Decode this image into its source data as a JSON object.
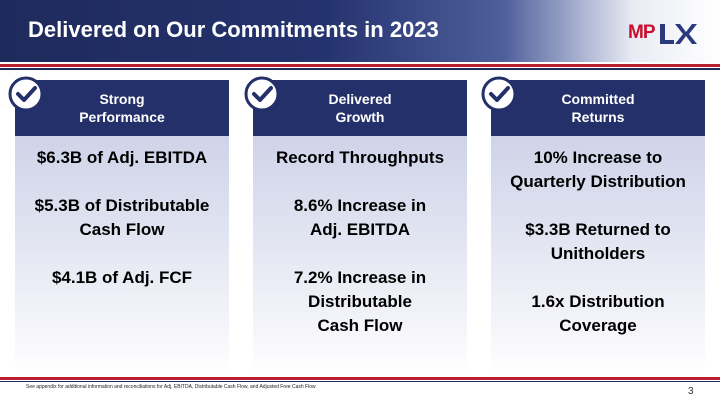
{
  "slide": {
    "title": "Delivered on Our Commitments in 2023",
    "logo_text": "MPLX",
    "logo_mp": "MP",
    "logo_lx": "LX",
    "colors": {
      "navy": "#24306a",
      "red": "#b8202f",
      "logo_red": "#c8102e"
    }
  },
  "panels": [
    {
      "heading": "Strong\nPerformance",
      "icon": "checkmark-circle-icon",
      "items": [
        "$6.3B of Adj. EBITDA",
        "$5.3B of Distributable\nCash Flow",
        "$4.1B of Adj. FCF"
      ]
    },
    {
      "heading": "Delivered\nGrowth",
      "icon": "checkmark-circle-icon",
      "items": [
        "Record Throughputs",
        "8.6% Increase in\nAdj. EBITDA",
        "7.2% Increase in\nDistributable\nCash Flow"
      ]
    },
    {
      "heading": "Committed\nReturns",
      "icon": "checkmark-circle-icon",
      "items": [
        "10% Increase to\nQuarterly Distribution",
        "$3.3B Returned to\nUnitholders",
        "1.6x Distribution\nCoverage"
      ]
    }
  ],
  "footer": {
    "footnote": "See appendix for additional information and reconciliations for Adj. EBITDA, Distributable Cash Flow, and Adjusted Free Cash Flow",
    "page_number": "3"
  }
}
